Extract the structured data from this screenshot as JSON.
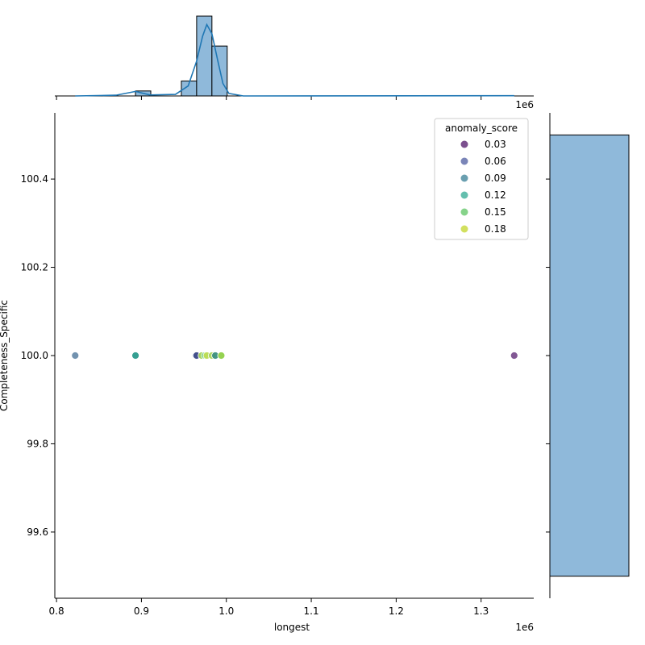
{
  "chart_data": {
    "type": "scatter",
    "title": "",
    "xlabel": "longest",
    "ylabel": "Completeness_Specific",
    "x_offset_label": "1e6",
    "top_offset_label": "1e6",
    "xlim": [
      0.798,
      1.362
    ],
    "ylim": [
      99.45,
      100.55
    ],
    "xticks": [
      0.8,
      0.9,
      1.0,
      1.1,
      1.2,
      1.3
    ],
    "xtick_labels": [
      "0.8",
      "0.9",
      "1.0",
      "1.1",
      "1.2",
      "1.3"
    ],
    "yticks": [
      99.6,
      99.8,
      100.0,
      100.2,
      100.4
    ],
    "ytick_labels": [
      "99.6",
      "99.8",
      "100.0",
      "100.2",
      "100.4"
    ],
    "grid": false,
    "legend": {
      "title": "anomaly_score",
      "placement": "top-right",
      "entries": [
        {
          "label": "0.03",
          "color": "#7b4f8e"
        },
        {
          "label": "0.06",
          "color": "#7a85b8"
        },
        {
          "label": "0.09",
          "color": "#6a9fb0"
        },
        {
          "label": "0.12",
          "color": "#64bfae"
        },
        {
          "label": "0.15",
          "color": "#86d38a"
        },
        {
          "label": "0.18",
          "color": "#d2e05f"
        }
      ]
    },
    "points": [
      {
        "x": 0.822,
        "y": 100.0,
        "color": "#6a8cab"
      },
      {
        "x": 0.893,
        "y": 100.0,
        "color": "#2a9a8c"
      },
      {
        "x": 0.964,
        "y": 100.0,
        "color": "#8fb3d0"
      },
      {
        "x": 0.965,
        "y": 100.0,
        "color": "#3f4a88"
      },
      {
        "x": 0.971,
        "y": 100.0,
        "color": "#a3d45a"
      },
      {
        "x": 0.975,
        "y": 100.0,
        "color": "#64c879"
      },
      {
        "x": 0.977,
        "y": 100.0,
        "color": "#c0dd55"
      },
      {
        "x": 0.983,
        "y": 100.0,
        "color": "#a9d55c"
      },
      {
        "x": 0.987,
        "y": 100.0,
        "color": "#3c8f80"
      },
      {
        "x": 0.994,
        "y": 100.0,
        "color": "#8fd048"
      },
      {
        "x": 1.339,
        "y": 100.0,
        "color": "#7b4f8e"
      }
    ],
    "marginal_x": {
      "type": "histogram",
      "bins": [
        {
          "x0": 0.893,
          "x1": 0.911,
          "count": 1
        },
        {
          "x0": 0.947,
          "x1": 0.965,
          "count": 3
        },
        {
          "x0": 0.965,
          "x1": 0.983,
          "count": 16
        },
        {
          "x0": 0.983,
          "x1": 1.001,
          "count": 10
        }
      ],
      "count_max": 16,
      "kde": [
        [
          0.822,
          0.0
        ],
        [
          0.87,
          0.15
        ],
        [
          0.893,
          0.9
        ],
        [
          0.91,
          0.2
        ],
        [
          0.94,
          0.3
        ],
        [
          0.955,
          2.0
        ],
        [
          0.965,
          7.0
        ],
        [
          0.972,
          12.0
        ],
        [
          0.977,
          14.3
        ],
        [
          0.983,
          12.5
        ],
        [
          0.99,
          7.0
        ],
        [
          0.996,
          2.5
        ],
        [
          1.003,
          0.5
        ],
        [
          1.02,
          0.0
        ],
        [
          1.339,
          0.05
        ]
      ],
      "kde_max": 16,
      "kde_xmin": 0.822,
      "kde_xmax": 1.339
    },
    "marginal_y": {
      "type": "histogram",
      "bins": [
        {
          "y0": 99.5,
          "y1": 100.5,
          "count": 1
        }
      ],
      "count_max": 1
    },
    "colors": {
      "hist_fill": "#8fb9da",
      "hist_edge": "#000000",
      "kde_line": "#1f77b4"
    }
  }
}
